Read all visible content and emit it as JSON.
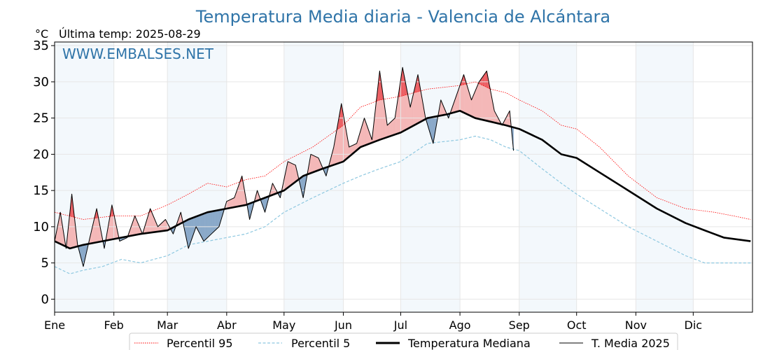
{
  "chart_data": {
    "type": "line",
    "title": "Temperatura Media diaria - Valencia de Alcántara",
    "unit": "°C",
    "last_temp_label": "Última temp: 2025-08-29",
    "watermark": "WWW.EMBALSES.NET",
    "ylim": [
      -1.8,
      35.5
    ],
    "yticks": [
      0,
      5,
      10,
      15,
      20,
      25,
      30,
      35
    ],
    "grid": true,
    "legend_position": "bottom",
    "months": [
      "Ene",
      "Feb",
      "Mar",
      "Abr",
      "May",
      "Jun",
      "Jul",
      "Ago",
      "Sep",
      "Oct",
      "Nov",
      "Dic"
    ],
    "month_start_days": [
      0,
      31,
      59,
      90,
      120,
      151,
      181,
      212,
      243,
      273,
      304,
      334
    ],
    "series": [
      {
        "name": "Percentil 95",
        "color": "#ff0000",
        "style": "dotted",
        "x": [
          0,
          15,
          31,
          45,
          59,
          70,
          80,
          90,
          100,
          110,
          120,
          135,
          151,
          160,
          170,
          181,
          195,
          212,
          220,
          228,
          236,
          243,
          255,
          265,
          273,
          285,
          300,
          315,
          330,
          345,
          355,
          364
        ],
        "y": [
          12.0,
          11.0,
          11.5,
          11.5,
          13.0,
          14.5,
          16.0,
          15.5,
          16.5,
          17.0,
          19.0,
          21.0,
          24.0,
          26.5,
          27.5,
          28.0,
          29.0,
          29.5,
          30.0,
          29.0,
          28.5,
          27.5,
          26.0,
          24.0,
          23.5,
          21.0,
          17.0,
          14.0,
          12.5,
          12.0,
          11.5,
          11.0
        ]
      },
      {
        "name": "Percentil 5",
        "color": "#8ec8e0",
        "style": "dashed",
        "x": [
          0,
          8,
          15,
          25,
          35,
          45,
          59,
          70,
          80,
          90,
          100,
          110,
          120,
          135,
          151,
          160,
          170,
          181,
          195,
          212,
          220,
          228,
          236,
          243,
          255,
          265,
          273,
          285,
          300,
          315,
          330,
          340,
          350,
          364
        ],
        "y": [
          4.5,
          3.5,
          4.0,
          4.5,
          5.5,
          5.0,
          6.0,
          7.5,
          8.0,
          8.5,
          9.0,
          10.0,
          12.0,
          14.0,
          16.0,
          17.0,
          18.0,
          19.0,
          21.5,
          22.0,
          22.5,
          22.0,
          21.0,
          20.5,
          18.0,
          16.0,
          14.5,
          12.5,
          10.0,
          8.0,
          6.0,
          5.0,
          5.0,
          5.0
        ]
      },
      {
        "name": "Temperatura Mediana",
        "color": "#000000",
        "style": "bold",
        "x": [
          0,
          8,
          15,
          25,
          35,
          45,
          59,
          70,
          80,
          90,
          100,
          110,
          120,
          130,
          140,
          151,
          160,
          170,
          181,
          195,
          205,
          212,
          220,
          228,
          236,
          243,
          255,
          265,
          273,
          285,
          300,
          315,
          330,
          340,
          350,
          364
        ],
        "y": [
          8.0,
          7.0,
          7.5,
          8.0,
          8.5,
          9.0,
          9.5,
          11.0,
          12.0,
          12.5,
          13.0,
          14.0,
          15.0,
          17.0,
          18.0,
          19.0,
          21.0,
          22.0,
          23.0,
          25.0,
          25.5,
          26.0,
          25.0,
          24.5,
          24.0,
          23.5,
          22.0,
          20.0,
          19.5,
          17.5,
          15.0,
          12.5,
          10.5,
          9.5,
          8.5,
          8.0
        ]
      },
      {
        "name": "T. Media 2025",
        "color": "#000000",
        "style": "solid",
        "x": [
          0,
          3,
          6,
          9,
          12,
          15,
          18,
          22,
          26,
          30,
          34,
          38,
          42,
          46,
          50,
          54,
          58,
          62,
          66,
          70,
          74,
          78,
          82,
          86,
          90,
          94,
          98,
          102,
          106,
          110,
          114,
          118,
          122,
          126,
          130,
          134,
          138,
          142,
          146,
          150,
          154,
          158,
          162,
          166,
          170,
          174,
          178,
          182,
          186,
          190,
          194,
          198,
          202,
          206,
          210,
          214,
          218,
          222,
          226,
          230,
          234,
          238,
          240
        ],
        "y": [
          8.0,
          12.0,
          7.0,
          14.5,
          7.5,
          4.5,
          8.0,
          12.5,
          7.0,
          13.0,
          8.0,
          8.5,
          11.5,
          9.0,
          12.5,
          10.0,
          11.0,
          9.0,
          12.0,
          7.0,
          10.0,
          8.0,
          9.0,
          10.0,
          13.5,
          14.0,
          17.0,
          11.0,
          15.0,
          12.0,
          16.0,
          14.0,
          19.0,
          18.5,
          14.0,
          20.0,
          19.5,
          17.0,
          21.0,
          27.0,
          21.0,
          21.5,
          25.0,
          22.0,
          31.5,
          24.0,
          25.0,
          32.0,
          26.5,
          31.0,
          25.0,
          21.5,
          27.5,
          25.0,
          28.0,
          31.0,
          27.5,
          30.0,
          31.5,
          26.0,
          24.0,
          26.0,
          20.5
        ]
      }
    ]
  }
}
